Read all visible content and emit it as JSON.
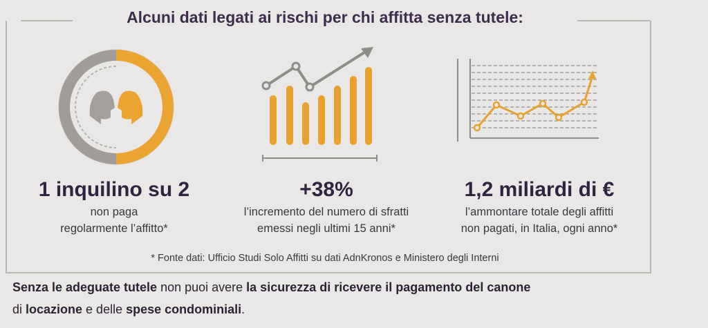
{
  "title": "Alcuni dati legati ai rischi per chi affitta senza tutele:",
  "stats": [
    {
      "headline": "1 inquilino su 2",
      "lines": [
        "non paga",
        "regolarmente l’affitto*"
      ]
    },
    {
      "headline": "+38%",
      "lines": [
        "l’incremento del numero di sfratti",
        "emessi negli ultimi 15 anni*"
      ]
    },
    {
      "headline": "1,2 miliardi di €",
      "lines": [
        "l’ammontare totale degli affitti",
        "non pagati, in Italia, ogni anno*"
      ]
    }
  ],
  "footnote": "* Fonte dati: Ufficio Studi Solo Affitti su dati AdnKronos e Ministero degli Interni",
  "closing": [
    [
      {
        "text": "Senza le adeguate tutele",
        "bold": true
      },
      {
        "text": " non puoi avere ",
        "bold": false
      },
      {
        "text": "la sicurezza di ricevere il pagamento del canone",
        "bold": true
      }
    ],
    [
      {
        "text": "di ",
        "bold": false
      },
      {
        "text": "locazione",
        "bold": true
      },
      {
        "text": " e delle ",
        "bold": false
      },
      {
        "text": "spese condominiali",
        "bold": true
      },
      {
        "text": ".",
        "bold": false
      }
    ]
  ]
}
